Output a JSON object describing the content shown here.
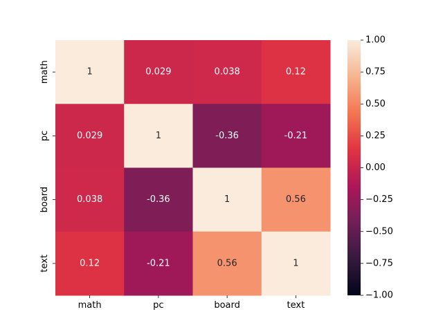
{
  "chart_data": {
    "type": "heatmap",
    "title": "",
    "xlabel": "",
    "ylabel": "",
    "x_categories": [
      "math",
      "pc",
      "board",
      "text"
    ],
    "y_categories": [
      "math",
      "pc",
      "board",
      "text"
    ],
    "values": [
      [
        1,
        0.029,
        0.038,
        0.12
      ],
      [
        0.029,
        1,
        -0.36,
        -0.21
      ],
      [
        0.038,
        -0.36,
        1,
        0.56
      ],
      [
        0.12,
        -0.21,
        0.56,
        1
      ]
    ],
    "value_labels": [
      [
        "1",
        "0.029",
        "0.038",
        "0.12"
      ],
      [
        "0.029",
        "1",
        "-0.36",
        "-0.21"
      ],
      [
        "0.038",
        "-0.36",
        "1",
        "0.56"
      ],
      [
        "0.12",
        "-0.21",
        "0.56",
        "1"
      ]
    ],
    "colorbar": {
      "min": -1.0,
      "max": 1.0,
      "ticks": [
        "1.00",
        "0.75",
        "0.50",
        "0.25",
        "0.00",
        "−0.25",
        "−0.50",
        "−0.75",
        "−1.00"
      ],
      "colormap": "rocket",
      "colors": [
        "#03051a",
        "#36193e",
        "#701f57",
        "#ad1759",
        "#e13342",
        "#f37651",
        "#f6b48f",
        "#faebdd"
      ]
    }
  }
}
